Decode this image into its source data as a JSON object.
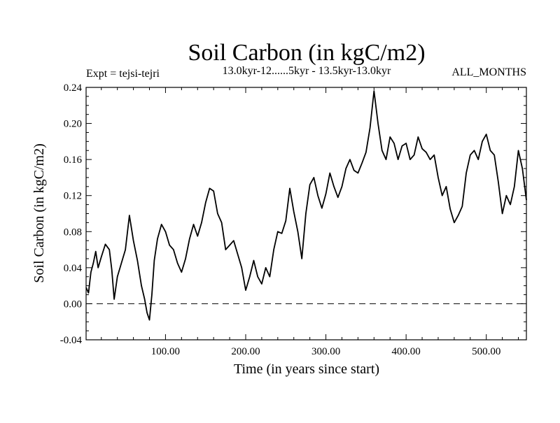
{
  "chart_data": {
    "type": "line",
    "title": "Soil Carbon (in kgC/m2)",
    "subtitle_left": "Expt = tejsi-tejri",
    "subtitle_center": "13.0kyr-12......5kyr - 13.5kyr-13.0kyr",
    "subtitle_right": "ALL_MONTHS",
    "xlabel": "Time (in years since start)",
    "ylabel": "Soil Carbon (in kgC/m2)",
    "xlim": [
      1,
      550
    ],
    "ylim": [
      -0.04,
      0.24
    ],
    "xticks": [
      {
        "value": 100,
        "label": "100.00"
      },
      {
        "value": 200,
        "label": "200.00"
      },
      {
        "value": 300,
        "label": "300.00"
      },
      {
        "value": 400,
        "label": "400.00"
      },
      {
        "value": 500,
        "label": "500.00"
      }
    ],
    "yticks": [
      {
        "value": -0.04,
        "label": "-0.04"
      },
      {
        "value": 0.0,
        "label": "0.00"
      },
      {
        "value": 0.04,
        "label": "0.04"
      },
      {
        "value": 0.08,
        "label": "0.08"
      },
      {
        "value": 0.12,
        "label": "0.12"
      },
      {
        "value": 0.16,
        "label": "0.16"
      },
      {
        "value": 0.2,
        "label": "0.20"
      },
      {
        "value": 0.24,
        "label": "0.24"
      }
    ],
    "reference_line": {
      "y": 0.0,
      "style": "dashed"
    },
    "series": [
      {
        "name": "tejsi-tejri",
        "x": [
          1,
          4,
          7,
          10,
          13,
          16,
          20,
          25,
          30,
          33,
          36,
          40,
          45,
          50,
          55,
          60,
          65,
          70,
          74,
          77,
          80,
          83,
          86,
          90,
          95,
          100,
          105,
          110,
          115,
          120,
          125,
          130,
          135,
          140,
          145,
          150,
          155,
          160,
          165,
          170,
          175,
          180,
          185,
          190,
          195,
          200,
          205,
          210,
          215,
          220,
          225,
          230,
          235,
          240,
          245,
          250,
          255,
          260,
          265,
          270,
          275,
          280,
          285,
          290,
          295,
          300,
          305,
          310,
          315,
          320,
          325,
          330,
          335,
          340,
          345,
          350,
          355,
          360,
          365,
          370,
          375,
          380,
          385,
          390,
          395,
          400,
          405,
          410,
          415,
          420,
          425,
          430,
          435,
          440,
          445,
          450,
          455,
          460,
          465,
          470,
          475,
          480,
          485,
          490,
          495,
          500,
          505,
          510,
          515,
          520,
          525,
          530,
          535,
          540,
          545,
          550
        ],
        "values": [
          0.018,
          0.012,
          0.035,
          0.045,
          0.058,
          0.04,
          0.052,
          0.066,
          0.06,
          0.038,
          0.005,
          0.03,
          0.045,
          0.06,
          0.098,
          0.07,
          0.048,
          0.02,
          0.005,
          -0.01,
          -0.018,
          0.01,
          0.048,
          0.072,
          0.088,
          0.08,
          0.065,
          0.06,
          0.045,
          0.035,
          0.05,
          0.072,
          0.088,
          0.075,
          0.09,
          0.112,
          0.128,
          0.125,
          0.1,
          0.09,
          0.06,
          0.065,
          0.07,
          0.055,
          0.04,
          0.015,
          0.03,
          0.048,
          0.03,
          0.022,
          0.04,
          0.03,
          0.06,
          0.08,
          0.078,
          0.092,
          0.128,
          0.102,
          0.08,
          0.05,
          0.1,
          0.132,
          0.14,
          0.12,
          0.106,
          0.122,
          0.145,
          0.13,
          0.118,
          0.13,
          0.15,
          0.16,
          0.148,
          0.145,
          0.156,
          0.168,
          0.195,
          0.236,
          0.2,
          0.17,
          0.16,
          0.185,
          0.178,
          0.16,
          0.175,
          0.178,
          0.16,
          0.165,
          0.185,
          0.172,
          0.168,
          0.16,
          0.165,
          0.14,
          0.12,
          0.13,
          0.105,
          0.09,
          0.098,
          0.108,
          0.145,
          0.165,
          0.17,
          0.16,
          0.18,
          0.188,
          0.17,
          0.165,
          0.135,
          0.1,
          0.12,
          0.11,
          0.13,
          0.17,
          0.15,
          0.115
        ]
      }
    ]
  }
}
